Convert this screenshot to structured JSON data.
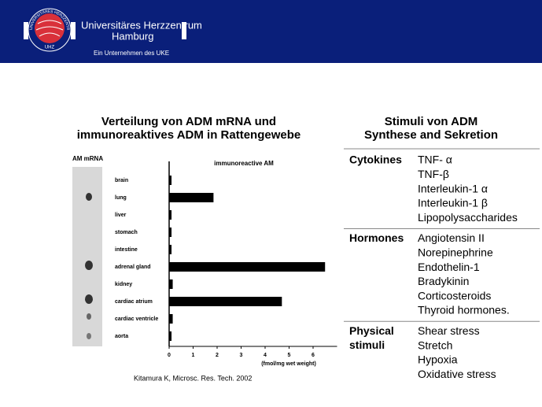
{
  "header": {
    "name_line1": "Universitäres Herzzentrum",
    "name_line2": "Hamburg",
    "subline": "Ein Unternehmen des UKE",
    "logo_ring": "UNIVERSITÄRES HERZZENTRUM",
    "logo_abbr": "UHZ"
  },
  "left_title": [
    "Verteilung von ADM mRNA und",
    "immunoreaktives ADM in Rattengewebe"
  ],
  "blot_label": "AM mRNA",
  "chart_data": {
    "type": "bar",
    "orientation": "horizontal",
    "title": "immunoreactive AM",
    "x_label": "(fmol/mg wet weight)",
    "categories": [
      "brain",
      "lung",
      "liver",
      "stomach",
      "intestine",
      "adrenal gland",
      "kidney",
      "cardiac atrium",
      "cardiac ventricle",
      "aorta"
    ],
    "values": [
      0.05,
      1.8,
      0.05,
      0.05,
      0.05,
      6.45,
      0.1,
      4.65,
      0.1,
      0.05
    ],
    "color": "#000000",
    "xlim": [
      0,
      7
    ],
    "xticks": [
      0,
      1,
      2,
      3,
      4,
      5,
      6
    ]
  },
  "citation": "Kitamura K, Microsc. Res. Tech. 2002",
  "right_title": [
    "Stimuli von ADM",
    "Synthese and Sekretion"
  ],
  "table": {
    "rows": [
      {
        "label": [
          "Cytokines"
        ],
        "items": [
          "TNF- α",
          "TNF-β",
          "Interleukin-1 α",
          "Interleukin-1 β",
          "Lipopolysaccharides"
        ]
      },
      {
        "label": [
          "Hormones"
        ],
        "items": [
          "Angiotensin II",
          "Norepinephrine",
          "Endothelin-1",
          "Bradykinin",
          "Corticosteroids",
          "Thyroid hormones."
        ]
      },
      {
        "label": [
          "Physical",
          "stimuli"
        ],
        "items": [
          "Shear stress",
          "Stretch",
          "Hypoxia",
          "Oxidative stress"
        ]
      }
    ]
  }
}
